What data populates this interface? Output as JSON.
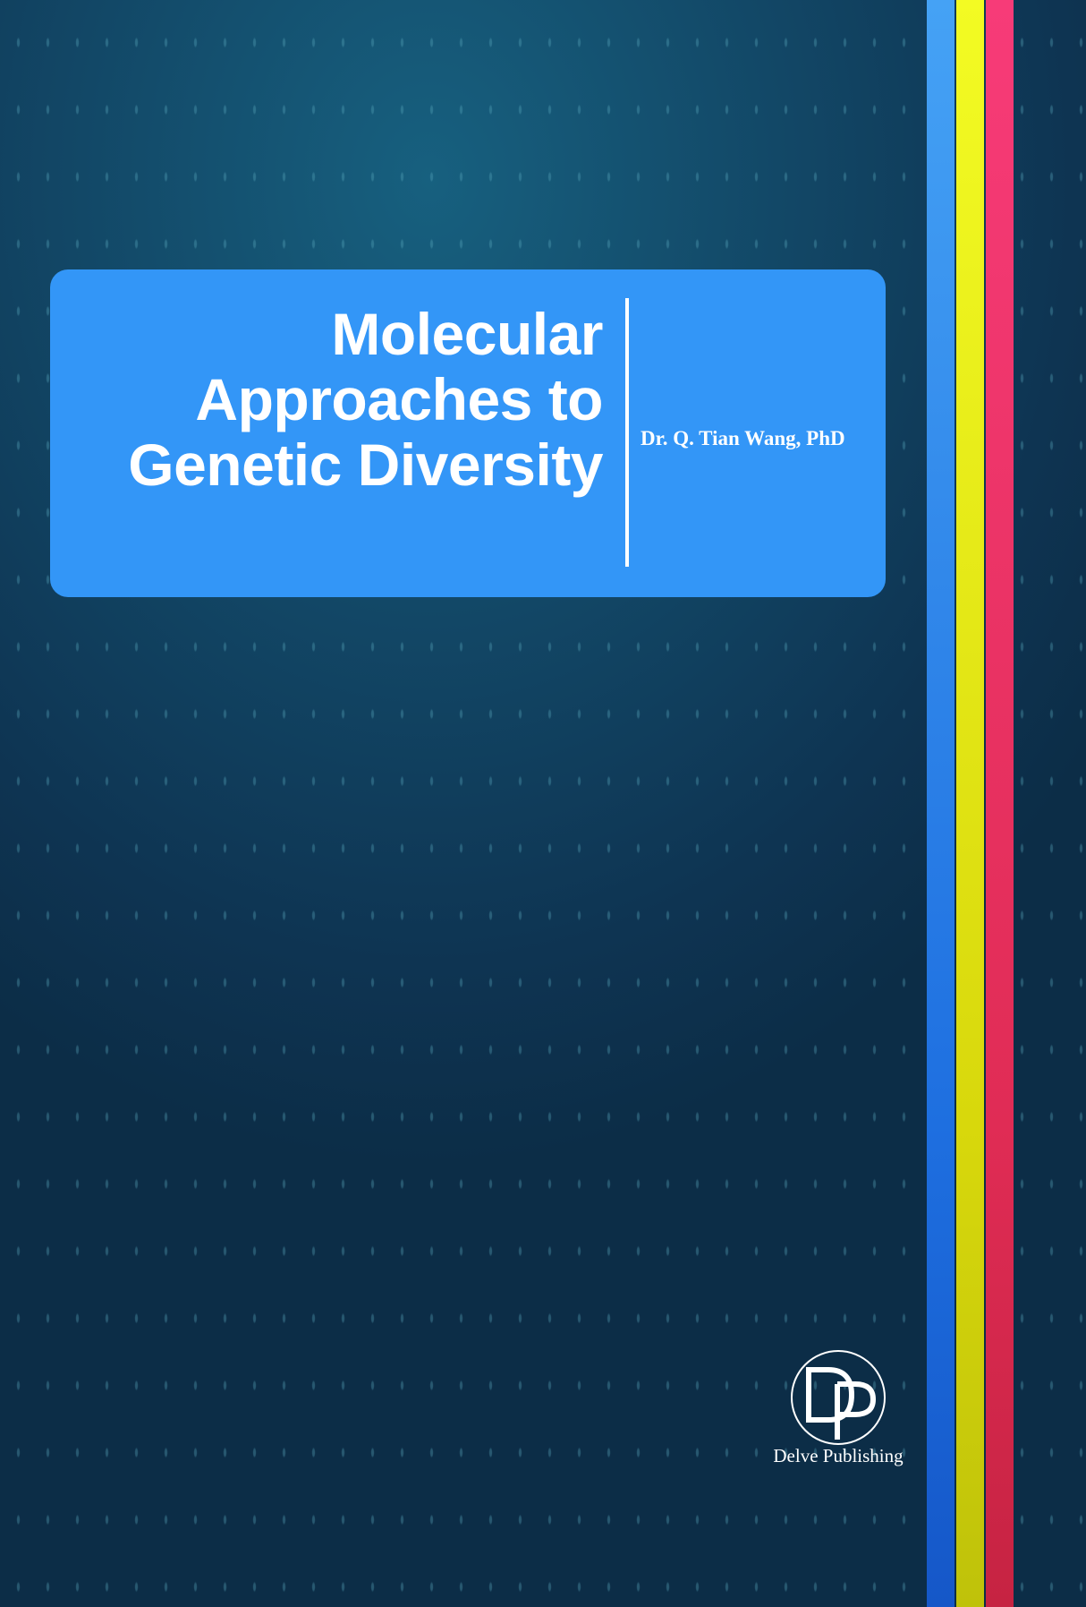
{
  "book": {
    "title_lines": [
      "Molecular",
      "Approaches to",
      "Genetic Diversity"
    ],
    "author": "Dr. Q. Tian Wang, PhD",
    "publisher": "Delve Publishing",
    "logo_monogram": "DP"
  },
  "colors": {
    "background": "#124766",
    "card": "#3396f7",
    "stripes": [
      "#3396f7",
      "#f3fb23",
      "#f73b78"
    ]
  }
}
